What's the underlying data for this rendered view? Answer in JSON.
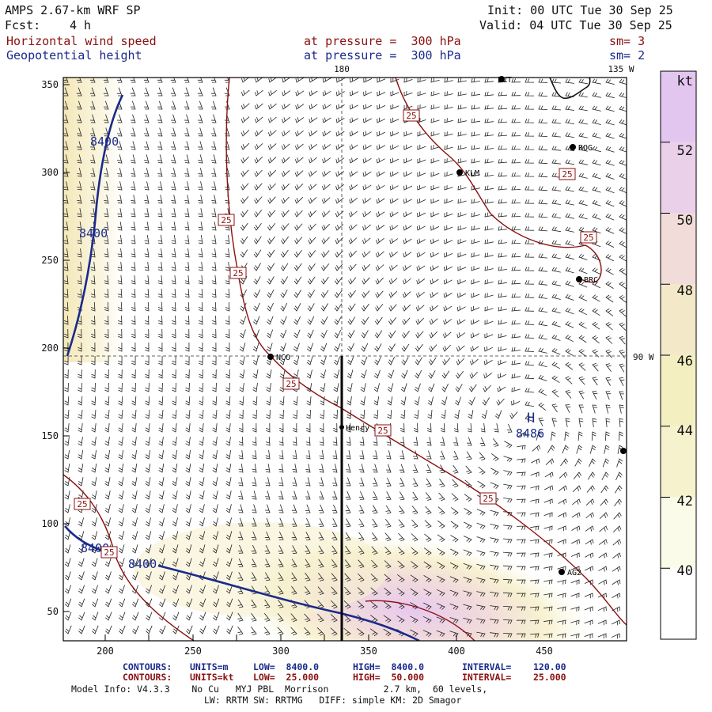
{
  "header": {
    "model": "AMPS 2.67-km WRF SP",
    "fcst_label": "Fcst:",
    "fcst_value": "4 h",
    "init": "Init: 00 UTC Tue 30 Sep 25",
    "valid": "Valid: 04 UTC Tue 30 Sep 25",
    "field1": "Horizontal wind speed",
    "field1_level": "at pressure =  300 hPa",
    "field1_sm": "sm= 3",
    "field2": "Geopotential height",
    "field2_level": "at pressure =  300 hPa",
    "field2_sm": "sm= 2"
  },
  "map": {
    "x_ticks": [
      "200",
      "250",
      "300",
      "350",
      "400",
      "450"
    ],
    "y_ticks": [
      "50",
      "100",
      "150",
      "200",
      "250",
      "300",
      "350"
    ],
    "meridian_180": "180",
    "meridian_135w": "135 W",
    "meridian_90w": "90 W",
    "stations": [
      "LVT",
      "ROG",
      "KLM",
      "BRC",
      "NCO",
      "Henry",
      "AG2"
    ],
    "height_labels": [
      "8400",
      "8400",
      "8400",
      "8400"
    ],
    "high_symbol": "H",
    "high_value": "8486",
    "wind_labels": [
      "25",
      "25",
      "25",
      "25",
      "25",
      "25",
      "25",
      "25",
      "25",
      "25"
    ],
    "colors": {
      "height": "#1a2a8c",
      "wind": "#8b1010"
    }
  },
  "colorbar": {
    "unit": "kt",
    "labels": [
      "52",
      "50",
      "48",
      "46",
      "44",
      "42",
      "40"
    ],
    "colors": [
      "#ffffff",
      "#fbfbe9",
      "#f6f2cd",
      "#f4efc0",
      "#f3e8c8",
      "#f1dcd9",
      "#ebd0ea",
      "#e2c6f0"
    ]
  },
  "footer": {
    "c1_label": "CONTOURS:",
    "c1_units": "UNITS=m",
    "c1_low": "LOW=  8400.0",
    "c1_high": "HIGH=  8400.0",
    "c1_interval": "INTERVAL=    120.00",
    "c2_label": "CONTOURS:",
    "c2_units": "UNITS=kt",
    "c2_low": "LOW=  25.000",
    "c2_high": "HIGH=  50.000",
    "c2_interval": "INTERVAL=    25.000",
    "info1": "Model Info: V4.3.3    No Cu   MYJ PBL  Morrison          2.7 km,  60 levels,",
    "info2": "LW: RRTM SW: RRTMG   DIFF: simple KM: 2D Smagor"
  }
}
